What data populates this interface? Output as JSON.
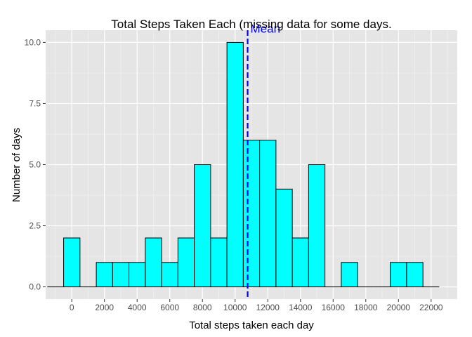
{
  "chart_data": {
    "type": "bar",
    "title": "Total Steps Taken Each (missing data for some days.",
    "xlabel": "Total steps taken each day",
    "ylabel": "Number of days",
    "xlim": [
      -1600,
      23600
    ],
    "ylim": [
      -0.5,
      10.5
    ],
    "bin_width": 1000,
    "x_ticks": [
      0,
      2000,
      4000,
      6000,
      8000,
      10000,
      12000,
      14000,
      16000,
      18000,
      20000,
      22000
    ],
    "x_tick_labels": [
      "0",
      "2000",
      "4000",
      "6000",
      "8000",
      "10000",
      "12000",
      "14000",
      "16000",
      "18000",
      "20000",
      "22000"
    ],
    "y_ticks": [
      0,
      2.5,
      5,
      7.5,
      10
    ],
    "y_tick_labels": [
      "0.0",
      "2.5",
      "5.0",
      "7.5",
      "10.0"
    ],
    "bins": [
      {
        "x": -1000,
        "count": 0
      },
      {
        "x": 0,
        "count": 2
      },
      {
        "x": 1000,
        "count": 0
      },
      {
        "x": 2000,
        "count": 1
      },
      {
        "x": 3000,
        "count": 1
      },
      {
        "x": 4000,
        "count": 1
      },
      {
        "x": 5000,
        "count": 2
      },
      {
        "x": 6000,
        "count": 1
      },
      {
        "x": 7000,
        "count": 2
      },
      {
        "x": 8000,
        "count": 5
      },
      {
        "x": 9000,
        "count": 2
      },
      {
        "x": 10000,
        "count": 10
      },
      {
        "x": 11000,
        "count": 6
      },
      {
        "x": 12000,
        "count": 6
      },
      {
        "x": 13000,
        "count": 4
      },
      {
        "x": 14000,
        "count": 2
      },
      {
        "x": 15000,
        "count": 5
      },
      {
        "x": 16000,
        "count": 0
      },
      {
        "x": 17000,
        "count": 1
      },
      {
        "x": 18000,
        "count": 0
      },
      {
        "x": 19000,
        "count": 0
      },
      {
        "x": 20000,
        "count": 1
      },
      {
        "x": 21000,
        "count": 1
      },
      {
        "x": 22000,
        "count": 0
      }
    ],
    "mean": 10766,
    "mean_label": "Mean",
    "grid": true,
    "colors": {
      "bar_fill": "#00ffff",
      "bar_stroke": "#000000",
      "panel_bg": "#e5e5e5",
      "grid_major": "#ffffff",
      "grid_minor": "#f2f2f2",
      "mean_line": "#0000ff",
      "mean_label": "#0000ff",
      "tick_label": "#4d4d4d"
    }
  }
}
